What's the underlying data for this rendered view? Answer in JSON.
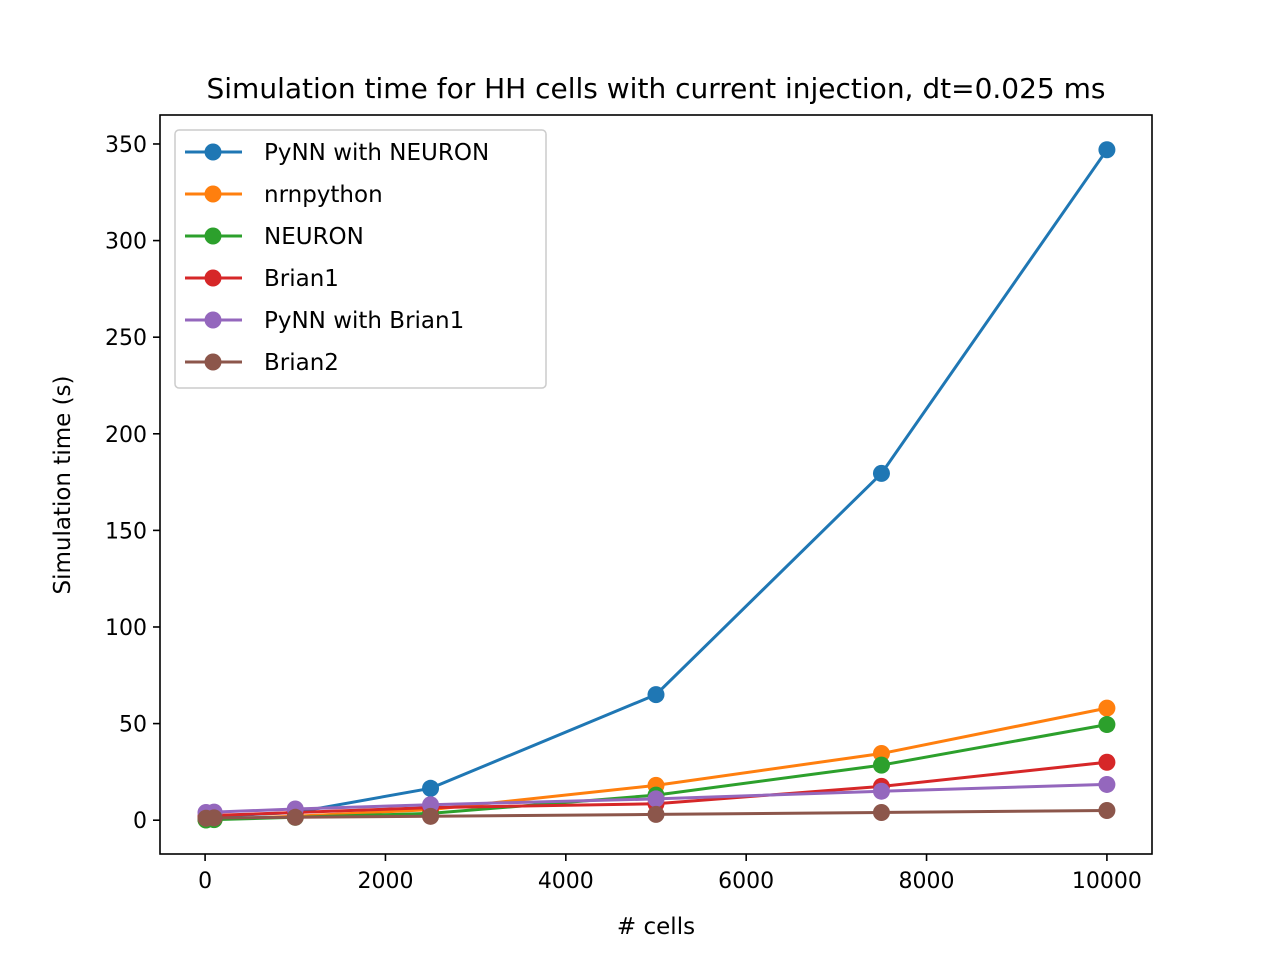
{
  "chart_data": {
    "type": "line",
    "title": "Simulation time for HH cells with current injection, dt=0.025 ms",
    "xlabel": "# cells",
    "ylabel": "Simulation time (s)",
    "xlim": [
      -500,
      10500
    ],
    "ylim": [
      -17.5,
      365
    ],
    "xticks": [
      0,
      2000,
      4000,
      6000,
      8000,
      10000
    ],
    "yticks": [
      0,
      50,
      100,
      150,
      200,
      250,
      300,
      350
    ],
    "grid": false,
    "legend_position": "top-left",
    "series": [
      {
        "name": "PyNN with NEURON",
        "color": "#1f77b4",
        "x": [
          10,
          100,
          1000,
          2500,
          5000,
          7500,
          10000
        ],
        "y": [
          1.5,
          2,
          4,
          16.5,
          65,
          179.5,
          347
        ]
      },
      {
        "name": "nrnpython",
        "color": "#ff7f0e",
        "x": [
          10,
          100,
          1000,
          2500,
          5000,
          7500,
          10000
        ],
        "y": [
          0.2,
          0.5,
          2,
          5.5,
          18,
          34.5,
          58
        ]
      },
      {
        "name": "NEURON",
        "color": "#2ca02c",
        "x": [
          10,
          100,
          1000,
          2500,
          5000,
          7500,
          10000
        ],
        "y": [
          0.1,
          0.3,
          1.5,
          3.5,
          13,
          28.5,
          49.5
        ]
      },
      {
        "name": "Brian1",
        "color": "#d62728",
        "x": [
          10,
          100,
          1000,
          2500,
          5000,
          7500,
          10000
        ],
        "y": [
          2,
          2.5,
          4,
          6.5,
          8.5,
          17.5,
          30
        ]
      },
      {
        "name": "PyNN with Brian1",
        "color": "#9467bd",
        "x": [
          10,
          100,
          1000,
          2500,
          5000,
          7500,
          10000
        ],
        "y": [
          4,
          4.2,
          5.8,
          8,
          11,
          15,
          18.5
        ]
      },
      {
        "name": "Brian2",
        "color": "#8c564b",
        "x": [
          10,
          100,
          1000,
          2500,
          5000,
          7500,
          10000
        ],
        "y": [
          1,
          1.2,
          1.5,
          2,
          3,
          4,
          5
        ]
      }
    ]
  }
}
